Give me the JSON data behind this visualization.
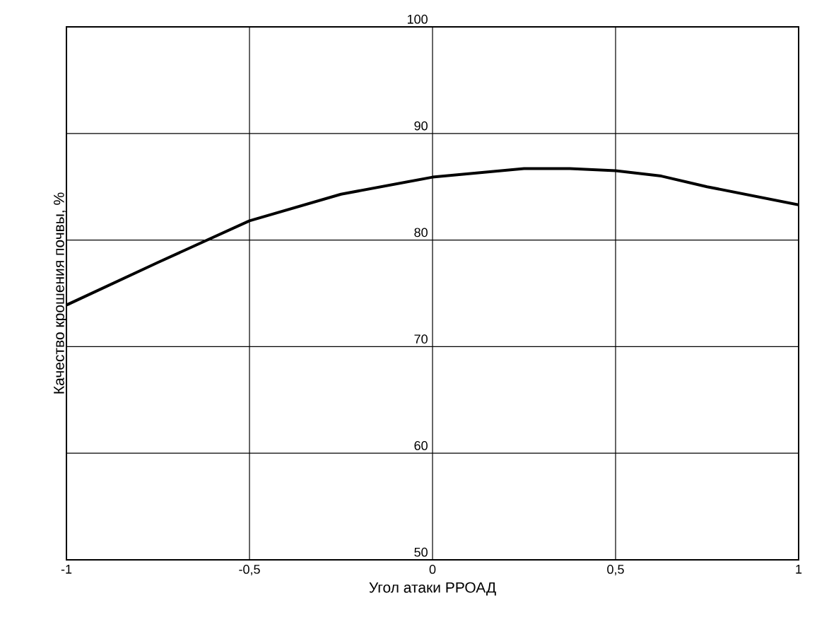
{
  "chart_data": {
    "type": "line",
    "xlabel": "Угол атаки РРОАД",
    "ylabel": "Качество крошения почвы, %",
    "x": [
      -1,
      -0.75,
      -0.5,
      -0.25,
      0,
      0.25,
      0.375,
      0.5,
      0.625,
      0.75,
      1
    ],
    "series": [
      {
        "color": "#000000",
        "values": [
          73.9,
          77.9,
          81.8,
          84.3,
          85.9,
          86.7,
          86.7,
          86.5,
          86.0,
          85.0,
          83.3
        ]
      }
    ],
    "xlim": [
      -1,
      1
    ],
    "ylim": [
      50,
      100
    ],
    "xticks": [
      -1,
      {
        "value": -0.5,
        "label": "-0,5"
      },
      0,
      {
        "value": 0.5,
        "label": "0,5"
      },
      1
    ],
    "yticks": [
      50,
      60,
      70,
      80,
      90,
      100
    ],
    "grid": true,
    "marker": "none",
    "line_style": "solid"
  }
}
